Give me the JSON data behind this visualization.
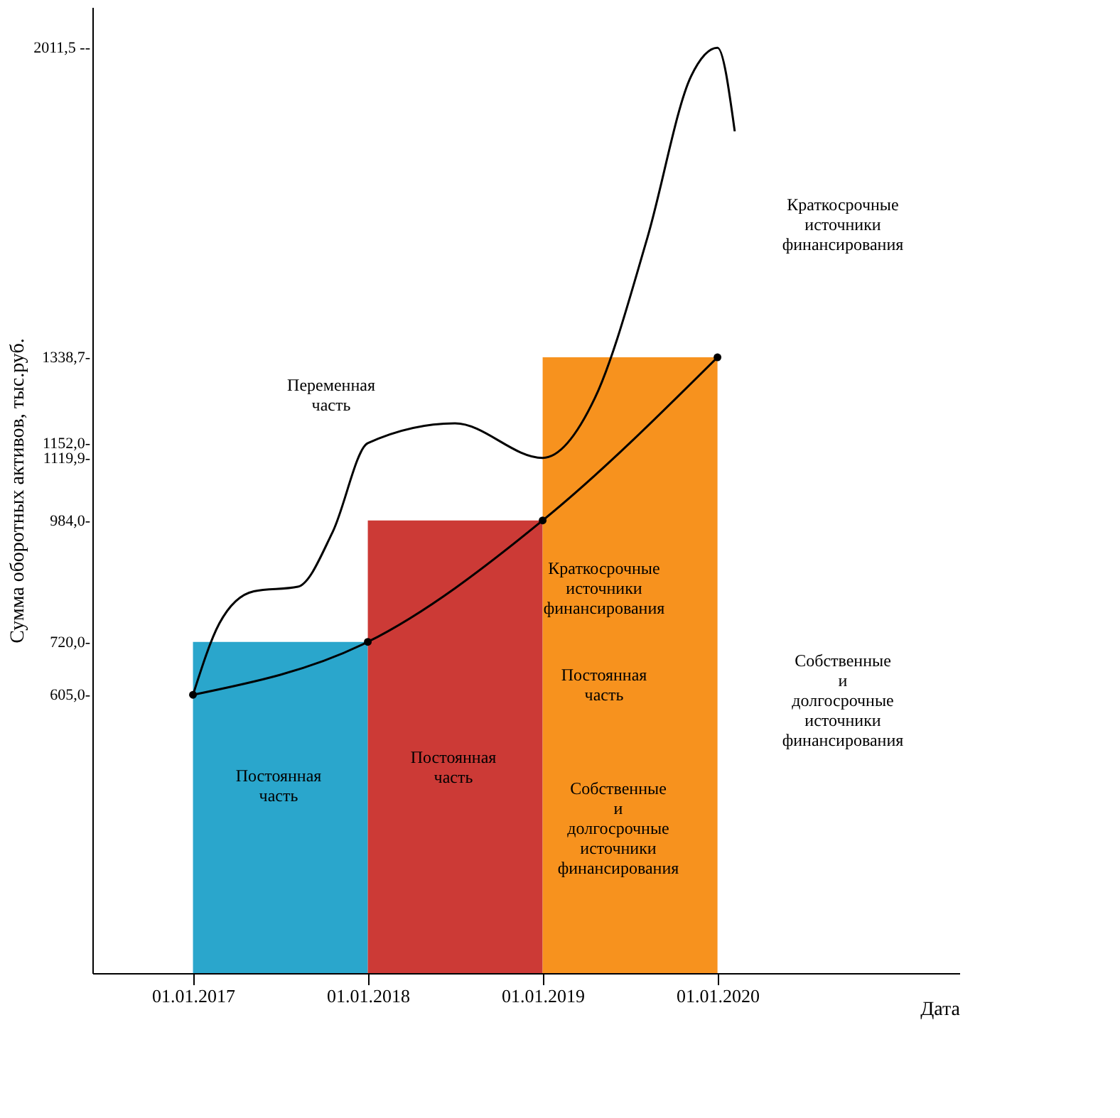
{
  "chart_data": {
    "type": "bar",
    "xlabel": "Дата",
    "ylabel": "Сумма оборотных активов, тыс.руб.",
    "xlim": [
      "2016-06-05",
      "2021-05-20"
    ],
    "xticks": [
      {
        "value": "2017-01-01",
        "label": "01.01.2017"
      },
      {
        "value": "2018-01-01",
        "label": "01.01.2018"
      },
      {
        "value": "2019-01-01",
        "label": "01.01.2019"
      },
      {
        "value": "2020-01-01",
        "label": "01.01.2020"
      }
    ],
    "ylim": [
      0,
      2100
    ],
    "yticks": [
      {
        "value": 605.0,
        "label": "605,0-"
      },
      {
        "value": 720.0,
        "label": "720,0-"
      },
      {
        "value": 984.0,
        "label": "984,0-"
      },
      {
        "value": 1119.9,
        "label": "1119,9-"
      },
      {
        "value": 1152.0,
        "label": "1152,0-"
      },
      {
        "value": 1338.7,
        "label": "1338,7-"
      },
      {
        "value": 2011.5,
        "label": "2011,5 --"
      }
    ],
    "grid": false,
    "series": [
      {
        "x": [
          "2017-07-02",
          "2018-07-02",
          "2019-07-02"
        ],
        "values": [
          720.0,
          984.0,
          1338.7
        ],
        "colors": [
          "#2aa6cc",
          "#cc3a36",
          "#f7921e"
        ]
      },
      {
        "type": "line",
        "color": "#000000",
        "marker": "circle",
        "x": [
          "2017-01-01",
          "2018-01-01",
          "2019-01-01",
          "2020-01-01"
        ],
        "values": [
          605.0,
          720.0,
          984.0,
          1338.7
        ]
      },
      {
        "type": "line",
        "color": "#000000",
        "marker": "none",
        "x": [
          "2017-01-01",
          "2017-02-25",
          "2017-05-08",
          "2017-08-08",
          "2017-10-20",
          "2018-01-01",
          "2018-07-02",
          "2019-01-01",
          "2019-04-20",
          "2019-08-08",
          "2019-11-07",
          "2020-01-01",
          "2020-02-06"
        ],
        "values": [
          605.0,
          760,
          830,
          840,
          960,
          1152.0,
          1195,
          1119.9,
          1250,
          1600,
          1950,
          2011.5,
          1830
        ]
      }
    ],
    "annotations": [
      "Переменная часть",
      "Постоянная часть",
      "Постоянная часть",
      "Краткосрочные источники финансирования",
      "Постоянная часть",
      "Собственные и долгосрочные источники финансирования",
      "Краткосрочные источники финансирования",
      "Собственные и долгосрочные источники финансирования"
    ]
  }
}
